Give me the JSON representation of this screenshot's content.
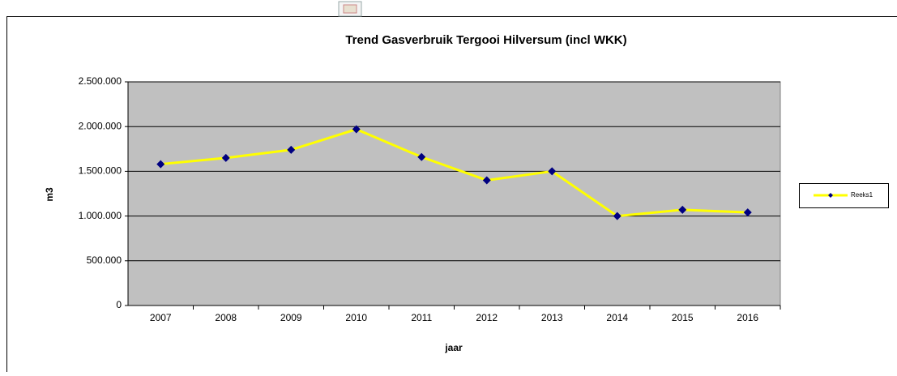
{
  "chart_data": {
    "type": "line",
    "title": "Trend Gasverbruik Tergooi Hilversum (incl WKK)",
    "x_label": "jaar",
    "y_label": "m3",
    "categories": [
      "2007",
      "2008",
      "2009",
      "2010",
      "2011",
      "2012",
      "2013",
      "2014",
      "2015",
      "2016"
    ],
    "series": [
      {
        "name": "Reeks1",
        "color": "#ffff00",
        "marker_color": "#000080",
        "values": [
          1580000,
          1650000,
          1740000,
          1970000,
          1660000,
          1400000,
          1500000,
          1000000,
          1070000,
          1040000
        ]
      }
    ],
    "ylim": [
      0,
      2500000
    ],
    "yticks": [
      0,
      {
        "value": 500000,
        "label": "500.000"
      },
      {
        "value": 1000000,
        "label": "1.000.000"
      },
      {
        "value": 1500000,
        "label": "1.500.000"
      },
      {
        "value": 2000000,
        "label": "2.000.000"
      },
      {
        "value": 2500000,
        "label": "2.500.000"
      }
    ],
    "grid": true,
    "legend": "right"
  }
}
